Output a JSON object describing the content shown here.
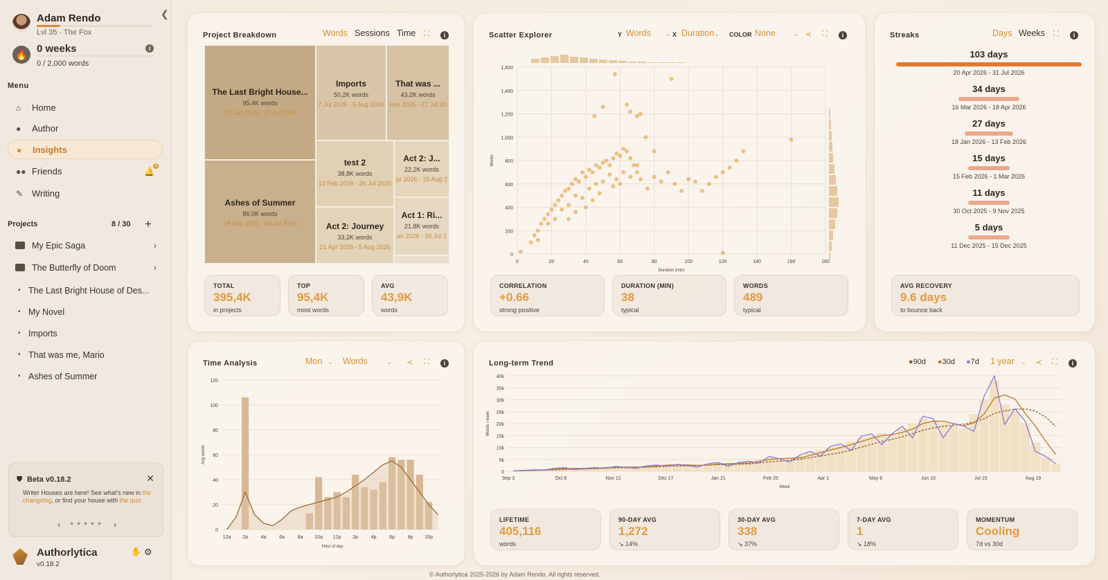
{
  "user": {
    "name": "Adam Rendo",
    "level": "Lvl 35 · The Fox",
    "xp_progress": 0.2
  },
  "streak": {
    "title": "0 weeks",
    "sub": "0 / 2,000 words",
    "info": "i"
  },
  "menu": {
    "label": "Menu",
    "items": [
      {
        "label": "Home",
        "icon": "home-icon"
      },
      {
        "label": "Author",
        "icon": "user-icon"
      },
      {
        "label": "Insights",
        "icon": "lightbulb-icon",
        "active": true
      },
      {
        "label": "Friends",
        "icon": "friends-icon",
        "badge": "1"
      },
      {
        "label": "Writing",
        "icon": "pen-icon"
      }
    ]
  },
  "projects": {
    "label": "Projects",
    "count": "8 / 30",
    "folders": [
      "My Epic Saga",
      "The Butterfly of Doom"
    ],
    "items": [
      "The Last Bright House of Des...",
      "My Novel",
      "Imports",
      "That was me, Mario",
      "Ashes of Summer"
    ]
  },
  "beta": {
    "title": "Beta v0.18.2",
    "text_a": "Writer Houses are here! See what's new in",
    "link_a": "the changelog",
    "text_b": ", or find your house with",
    "link_b": "the quiz",
    "dots": "● ● ● ● ●"
  },
  "brand": {
    "name": "Authorlytica",
    "version": "v0.18.2"
  },
  "project_breakdown": {
    "title": "Project Breakdown",
    "tabs": [
      "Words",
      "Sessions",
      "Time"
    ],
    "active_tab": "Words",
    "tiles": [
      {
        "name": "The Last Bright House...",
        "words": "95,4K words",
        "dates": "17 Jan 2025 - 27 Jul 2026"
      },
      {
        "name": "Ashes of Summer",
        "words": "86,0K words",
        "dates": "18 Sep 2025 - 24 Jul 2026"
      },
      {
        "name": "Imports",
        "words": "50,2K words",
        "dates": "7 Jul 2026 - 5 Aug 2026"
      },
      {
        "name": "That was ...",
        "words": "43,2K words",
        "dates": "Feb 2026 - 27 Jul 20"
      },
      {
        "name": "test 2",
        "words": "38,8K words",
        "dates": "12 Feb 2026 - 26 Jul 2026"
      },
      {
        "name": "Act 2: J...",
        "words": "22,2K words",
        "dates": "pr 2026 - 15 Aug 2"
      },
      {
        "name": "Act 2: Journey",
        "words": "33,2K words",
        "dates": "21 Apr 2026 - 5 Aug 2026"
      },
      {
        "name": "Act 1: Ri...",
        "words": "21,8K words",
        "dates": "an 2026 - 26 Jul 2"
      }
    ],
    "stats": [
      {
        "h": "TOTAL",
        "v": "395,4K",
        "s": "in projects"
      },
      {
        "h": "TOP",
        "v": "95,4K",
        "s": "most words"
      },
      {
        "h": "AVG",
        "v": "43,9K",
        "s": "words"
      }
    ]
  },
  "scatter": {
    "title": "Scatter Explorer",
    "y_label": "Y",
    "y_value": "Words",
    "x_label": "X",
    "x_value": "Duration",
    "color_label": "COLOR",
    "color_value": "None",
    "stats": [
      {
        "h": "CORRELATION",
        "v": "+0.66",
        "s": "strong positive"
      },
      {
        "h": "DURATION (MIN)",
        "v": "38",
        "s": "typical"
      },
      {
        "h": "WORDS",
        "v": "489",
        "s": "typical"
      }
    ]
  },
  "streaks": {
    "title": "Streaks",
    "tabs": [
      "Days",
      "Weeks"
    ],
    "active_tab": "Days",
    "items": [
      {
        "days": "103 days",
        "range": "20 Apr 2026 - 31 Jul 2026",
        "value": 103
      },
      {
        "days": "34 days",
        "range": "16 Mar 2026 - 18 Apr 2026",
        "value": 34
      },
      {
        "days": "27 days",
        "range": "18 Jan 2026 - 13 Feb 2026",
        "value": 27
      },
      {
        "days": "15 days",
        "range": "15 Feb 2026 - 1 Mar 2026",
        "value": 15
      },
      {
        "days": "11 days",
        "range": "30 Oct 2025 - 9 Nov 2025",
        "value": 11
      },
      {
        "days": "5 days",
        "range": "11 Dec 2025 - 15 Dec 2025",
        "value": 5
      }
    ],
    "stat": {
      "h": "AVG RECOVERY",
      "v": "9.6 days",
      "s": "to bounce back"
    }
  },
  "time_analysis": {
    "title": "Time Analysis",
    "day": "Mon",
    "metric": "Words"
  },
  "trend": {
    "title": "Long-term Trend",
    "legend": [
      "90d",
      "30d",
      "7d"
    ],
    "range": "1 year",
    "stats": [
      {
        "h": "LIFETIME",
        "v": "405,116",
        "s": "words"
      },
      {
        "h": "90-DAY AVG",
        "v": "1,272",
        "s": "↘ 14%"
      },
      {
        "h": "30-DAY AVG",
        "v": "338",
        "s": "↘ 37%"
      },
      {
        "h": "7-DAY AVG",
        "v": "1",
        "s": "↘ 18%"
      },
      {
        "h": "MOMENTUM",
        "v": "Cooling",
        "s": "7d vs 30d"
      }
    ]
  },
  "footer": "© Authorlytica 2025-2026 by Adam Rendo. All rights reserved.",
  "chart_data": [
    {
      "type": "scatter",
      "xlabel": "Duration (min)",
      "ylabel": "Words",
      "xlim": [
        0,
        180
      ],
      "ylim": [
        0,
        1600
      ],
      "x_ticks": [
        "0",
        "20",
        "40",
        "60",
        "80",
        "100",
        "120",
        "140",
        "160",
        "180"
      ],
      "y_ticks": [
        "0",
        "200",
        "400",
        "600",
        "800",
        "1,000",
        "1,200",
        "1,400",
        "1,600"
      ],
      "points": [
        [
          2,
          20
        ],
        [
          10,
          160
        ],
        [
          12,
          200
        ],
        [
          14,
          260
        ],
        [
          16,
          300
        ],
        [
          18,
          340
        ],
        [
          20,
          380
        ],
        [
          22,
          420
        ],
        [
          24,
          460
        ],
        [
          26,
          500
        ],
        [
          28,
          540
        ],
        [
          30,
          560
        ],
        [
          32,
          600
        ],
        [
          34,
          640
        ],
        [
          36,
          620
        ],
        [
          38,
          700
        ],
        [
          40,
          660
        ],
        [
          42,
          720
        ],
        [
          44,
          700
        ],
        [
          46,
          760
        ],
        [
          48,
          740
        ],
        [
          50,
          780
        ],
        [
          52,
          800
        ],
        [
          54,
          760
        ],
        [
          56,
          820
        ],
        [
          58,
          860
        ],
        [
          60,
          840
        ],
        [
          62,
          900
        ],
        [
          64,
          880
        ],
        [
          66,
          820
        ],
        [
          68,
          760
        ],
        [
          70,
          700
        ],
        [
          72,
          640
        ],
        [
          76,
          560
        ],
        [
          80,
          660
        ],
        [
          84,
          620
        ],
        [
          88,
          700
        ],
        [
          92,
          600
        ],
        [
          96,
          540
        ],
        [
          100,
          640
        ],
        [
          104,
          620
        ],
        [
          108,
          540
        ],
        [
          112,
          600
        ],
        [
          116,
          660
        ],
        [
          120,
          700
        ],
        [
          124,
          740
        ],
        [
          128,
          800
        ],
        [
          132,
          880
        ],
        [
          18,
          260
        ],
        [
          22,
          300
        ],
        [
          26,
          380
        ],
        [
          30,
          420
        ],
        [
          34,
          500
        ],
        [
          38,
          480
        ],
        [
          42,
          560
        ],
        [
          46,
          600
        ],
        [
          50,
          620
        ],
        [
          54,
          680
        ],
        [
          58,
          640
        ],
        [
          62,
          700
        ],
        [
          66,
          660
        ],
        [
          70,
          760
        ],
        [
          30,
          300
        ],
        [
          34,
          360
        ],
        [
          40,
          400
        ],
        [
          44,
          460
        ],
        [
          48,
          520
        ],
        [
          56,
          580
        ],
        [
          60,
          600
        ],
        [
          64,
          1280
        ],
        [
          66,
          1220
        ],
        [
          70,
          1180
        ],
        [
          72,
          1200
        ],
        [
          50,
          1260
        ],
        [
          57,
          1540
        ],
        [
          90,
          1500
        ],
        [
          45,
          1180
        ],
        [
          75,
          1000
        ],
        [
          80,
          880
        ],
        [
          160,
          980
        ],
        [
          120,
          10
        ],
        [
          8,
          100
        ],
        [
          12,
          120
        ]
      ]
    },
    {
      "type": "bar",
      "xlabel": "Hour of day",
      "ylabel": "Avg words",
      "ylim": [
        0,
        120
      ],
      "categories": [
        "12a",
        "1a",
        "2a",
        "3a",
        "4a",
        "5a",
        "6a",
        "7a",
        "8a",
        "9a",
        "10a",
        "11a",
        "12p",
        "1p",
        "2p",
        "3p",
        "4p",
        "5p",
        "6p",
        "7p",
        "8p",
        "9p",
        "10p",
        "11p"
      ],
      "values": [
        0,
        0,
        106,
        0,
        0,
        0,
        0,
        0,
        0,
        13,
        42,
        26,
        30,
        26,
        44,
        34,
        32,
        38,
        58,
        56,
        56,
        44,
        22,
        0
      ],
      "y_ticks": [
        "0",
        "20",
        "40",
        "60",
        "80",
        "100",
        "120"
      ],
      "x_ticks": [
        "12a",
        "2a",
        "4a",
        "6a",
        "8a",
        "10a",
        "12p",
        "2p",
        "4p",
        "6p",
        "8p",
        "10p"
      ]
    },
    {
      "type": "area",
      "xlabel": "Week",
      "ylabel": "Words / week",
      "ylim": [
        0,
        40000
      ],
      "y_ticks": [
        "0",
        "5k",
        "10k",
        "15k",
        "20k",
        "25k",
        "30k",
        "35k",
        "40k"
      ],
      "x_ticks": [
        "Sep 3",
        "Oct 8",
        "Nov 12",
        "Dec 17",
        "Jan 21",
        "Feb 25",
        "Apr 1",
        "May 6",
        "Jun 10",
        "Jul 15",
        "Aug 19"
      ],
      "values": [
        200,
        400,
        600,
        800,
        1200,
        1500,
        1000,
        1200,
        1500,
        1800,
        2000,
        1500,
        1800,
        2200,
        2500,
        3000,
        2800,
        2200,
        2600,
        3000,
        3500,
        3000,
        3500,
        4000,
        5000,
        6000,
        5000,
        5500,
        6500,
        8000,
        9000,
        10000,
        11000,
        12500,
        14000,
        15000,
        16000,
        15000,
        18000,
        20000,
        22000,
        21000,
        20000,
        19000,
        18000,
        24000,
        30000,
        38000,
        28000,
        25000,
        20000,
        12000,
        6000,
        3000
      ]
    }
  ]
}
